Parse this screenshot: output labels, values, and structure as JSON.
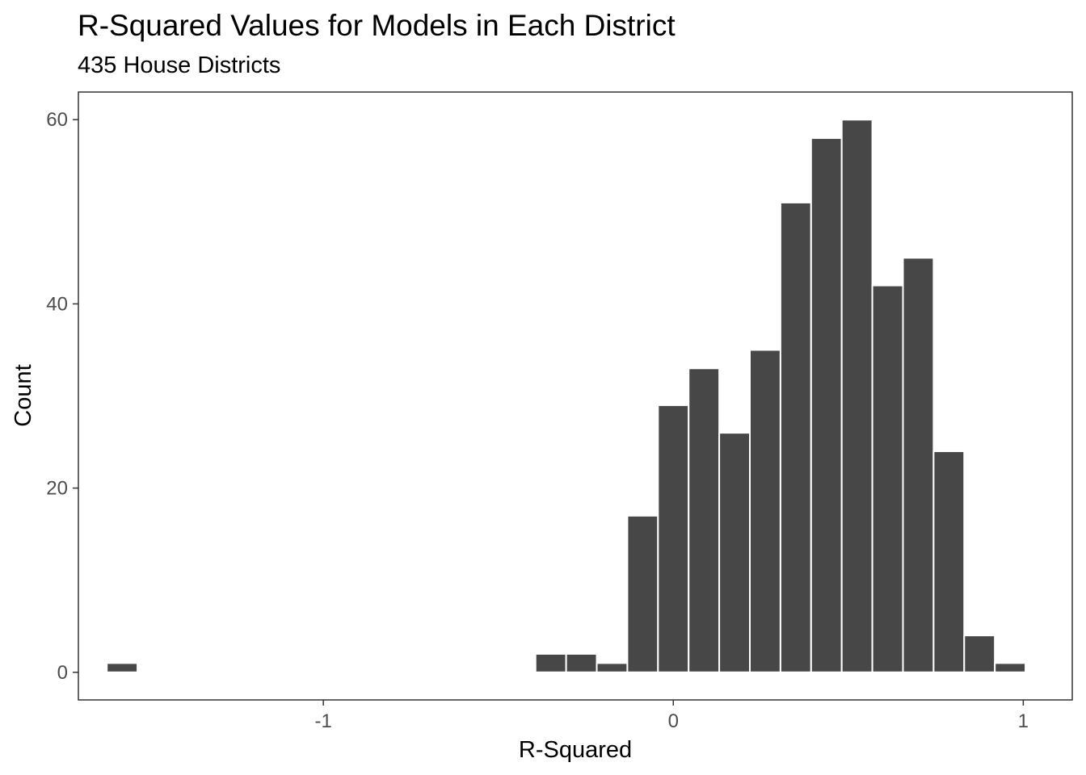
{
  "chart_data": {
    "type": "bar",
    "title": "R-Squared Values for Models in Each District",
    "subtitle": "435 House Districts",
    "xlabel": "R-Squared",
    "ylabel": "Count",
    "bin_width": 0.0875,
    "bins": [
      {
        "x": -1.575,
        "count": 1
      },
      {
        "x": -0.35,
        "count": 2
      },
      {
        "x": -0.2625,
        "count": 2
      },
      {
        "x": -0.175,
        "count": 1
      },
      {
        "x": -0.0875,
        "count": 17
      },
      {
        "x": 0.0,
        "count": 29
      },
      {
        "x": 0.0875,
        "count": 33
      },
      {
        "x": 0.175,
        "count": 26
      },
      {
        "x": 0.2625,
        "count": 35
      },
      {
        "x": 0.35,
        "count": 51
      },
      {
        "x": 0.4375,
        "count": 58
      },
      {
        "x": 0.525,
        "count": 60
      },
      {
        "x": 0.6125,
        "count": 42
      },
      {
        "x": 0.7,
        "count": 45
      },
      {
        "x": 0.7875,
        "count": 24
      },
      {
        "x": 0.875,
        "count": 4
      },
      {
        "x": 0.9625,
        "count": 1
      }
    ],
    "xlim": [
      -1.7,
      1.14
    ],
    "ylim": [
      -3,
      63
    ],
    "xticks": [
      -1,
      0,
      1
    ],
    "xtick_labels": [
      "-1",
      "0",
      "1"
    ],
    "yticks": [
      0,
      20,
      40,
      60
    ],
    "ytick_labels": [
      "0",
      "20",
      "40",
      "60"
    ],
    "bar_color": "#474747",
    "bar_outline_color": "#ffffff",
    "panel_border_color": "#333333",
    "grid": false,
    "legend": "none"
  }
}
